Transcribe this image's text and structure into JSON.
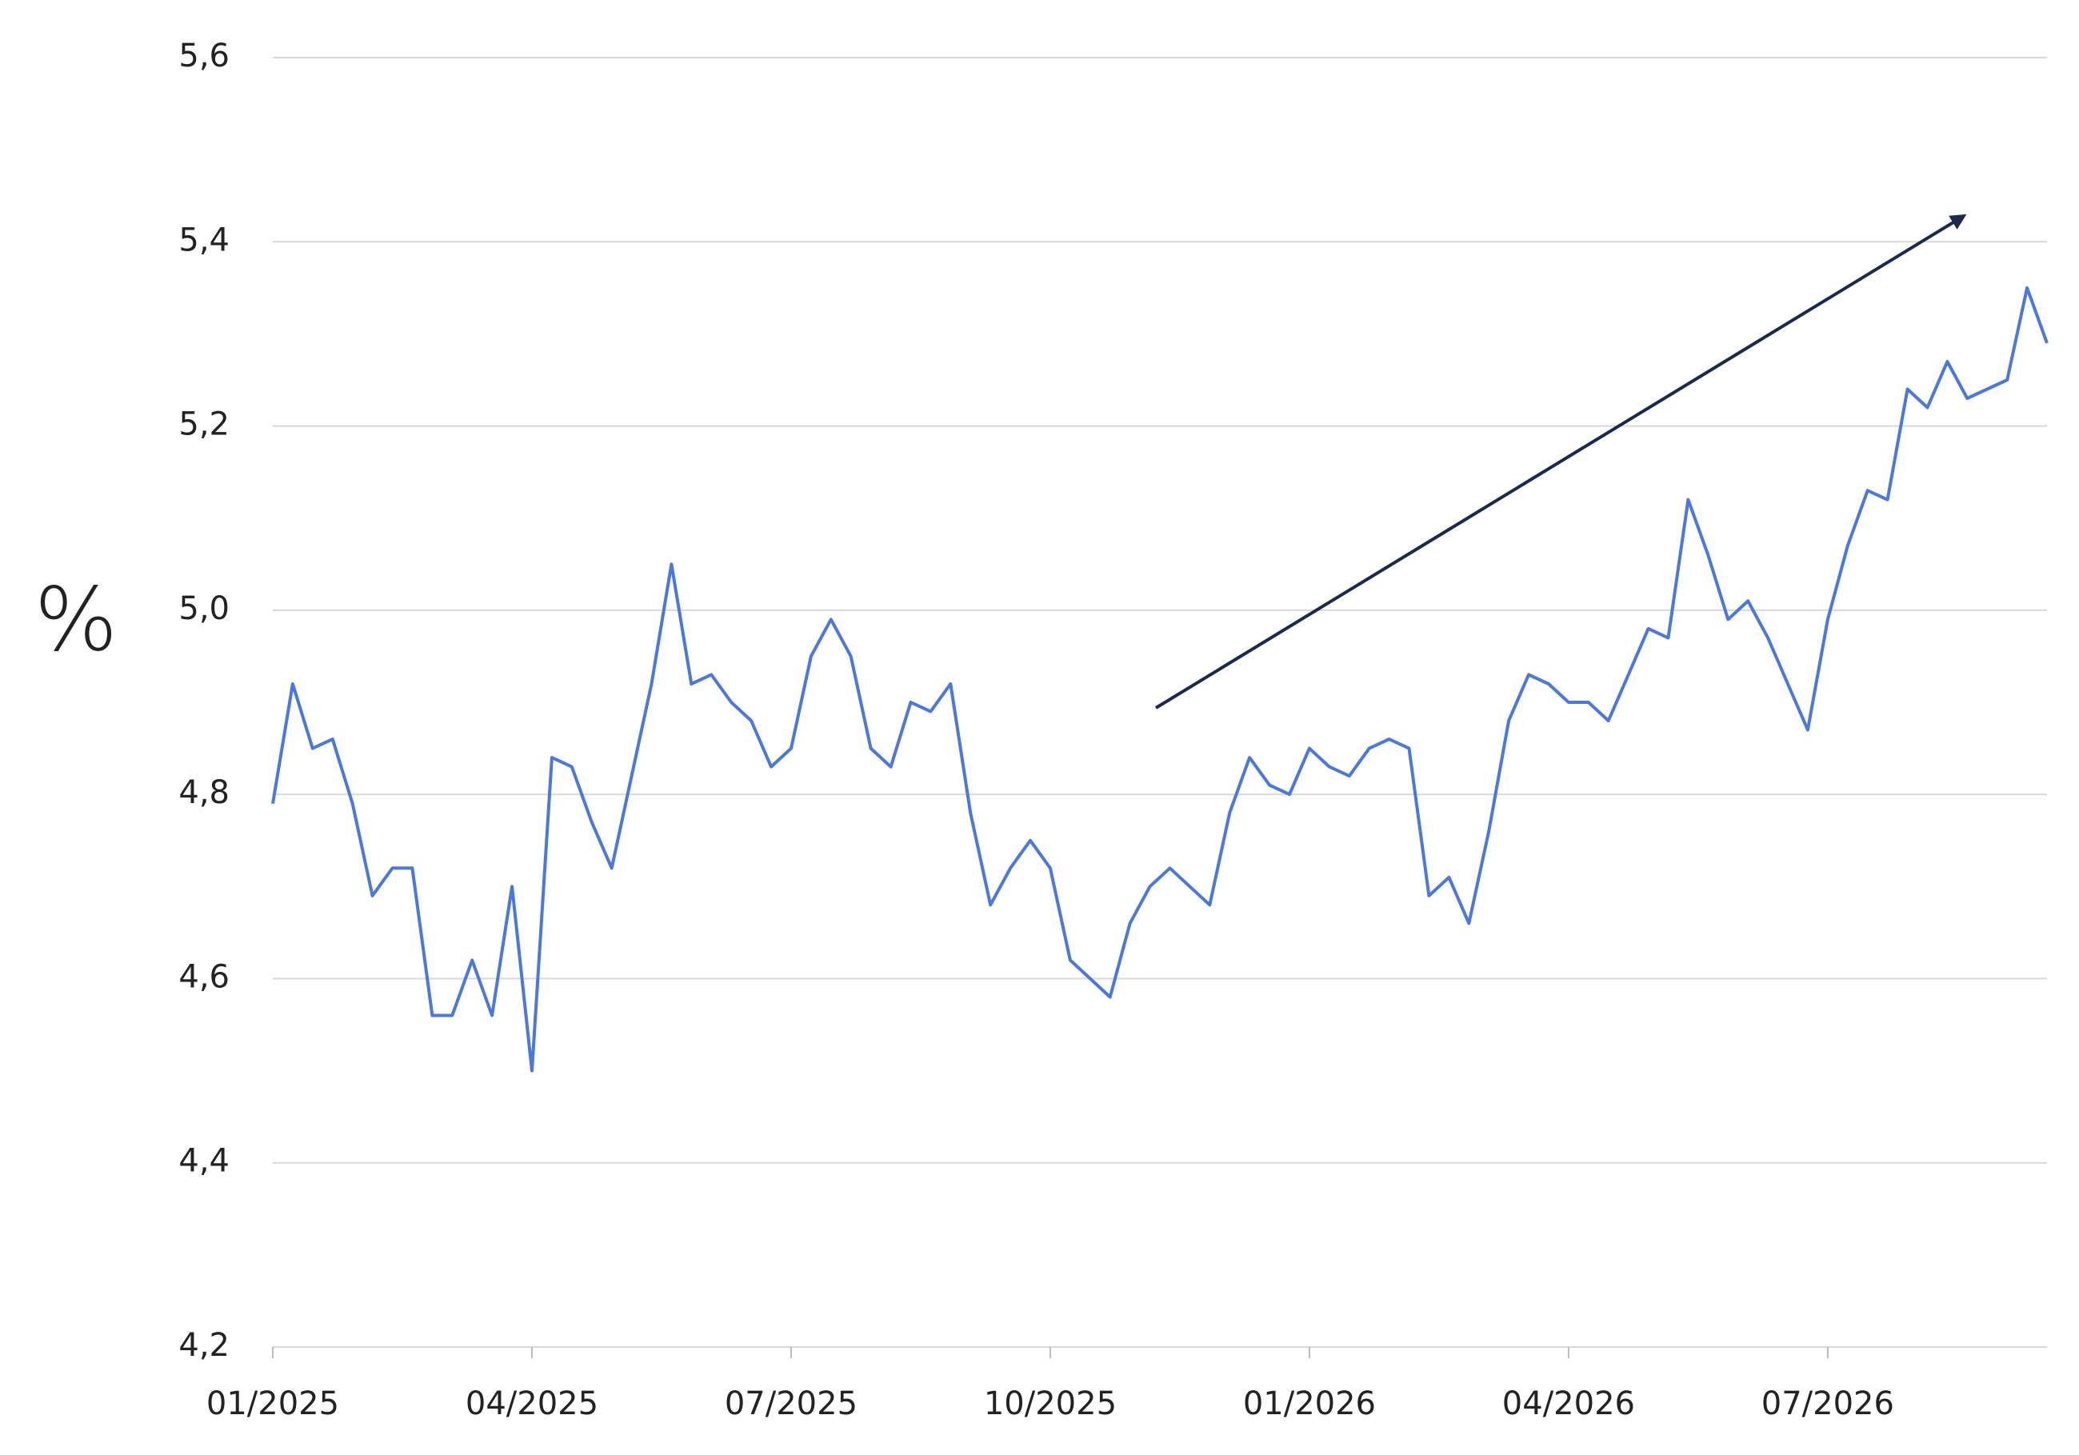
{
  "chart_data": {
    "type": "line",
    "y_label": "%",
    "categories": [
      "01/2025",
      null,
      null,
      null,
      null,
      null,
      null,
      null,
      null,
      null,
      null,
      null,
      null,
      "04/2025",
      null,
      null,
      null,
      null,
      null,
      null,
      null,
      null,
      null,
      null,
      null,
      null,
      "07/2025",
      null,
      null,
      null,
      null,
      null,
      null,
      null,
      null,
      null,
      null,
      null,
      null,
      "10/2025",
      null,
      null,
      null,
      null,
      null,
      null,
      null,
      null,
      null,
      null,
      null,
      null,
      "01/2026",
      null,
      null,
      null,
      null,
      null,
      null,
      null,
      null,
      null,
      null,
      null,
      null,
      "04/2026",
      null,
      null,
      null,
      null,
      null,
      null,
      null,
      null,
      null,
      null,
      null,
      null,
      "07/2026",
      null,
      null,
      null,
      null,
      null,
      null,
      null,
      null,
      null,
      null,
      null
    ],
    "series": [
      {
        "color": "#4a78e0",
        "values": [
          4.79,
          4.92,
          4.85,
          4.86,
          4.79,
          4.69,
          4.72,
          4.72,
          4.56,
          4.56,
          4.62,
          4.56,
          4.7,
          4.5,
          4.84,
          4.83,
          4.77,
          4.72,
          4.82,
          4.92,
          5.05,
          4.92,
          4.93,
          4.9,
          4.88,
          4.83,
          4.85,
          4.95,
          4.99,
          4.95,
          4.85,
          4.83,
          4.9,
          4.89,
          4.92,
          4.78,
          4.68,
          4.72,
          4.75,
          4.72,
          4.62,
          4.6,
          4.58,
          4.66,
          4.7,
          4.72,
          4.7,
          4.68,
          4.78,
          4.84,
          4.81,
          4.8,
          4.85,
          4.83,
          4.82,
          4.85,
          4.86,
          4.85,
          4.69,
          4.71,
          4.66,
          4.76,
          4.88,
          4.93,
          4.92,
          4.9,
          4.9,
          4.88,
          4.93,
          4.98,
          4.97,
          5.12,
          5.06,
          4.99,
          5.01,
          4.97,
          4.92,
          4.87,
          4.99,
          5.07,
          5.13,
          5.12,
          5.24,
          5.22,
          5.27,
          5.23,
          5.24,
          5.25,
          5.35,
          5.29
        ]
      }
    ],
    "ylim": [
      4.2,
      5.6
    ],
    "yticks": [
      {
        "value": 4.2,
        "label": "4,2"
      },
      {
        "value": 4.4,
        "label": "4,4"
      },
      {
        "value": 4.6,
        "label": "4,6"
      },
      {
        "value": 4.8,
        "label": "4,8"
      },
      {
        "value": 5.0,
        "label": "5,0"
      },
      {
        "value": 5.2,
        "label": "5,2"
      },
      {
        "value": 5.4,
        "label": "5,4"
      },
      {
        "value": 5.6,
        "label": "5,6"
      }
    ],
    "grid": true
  }
}
